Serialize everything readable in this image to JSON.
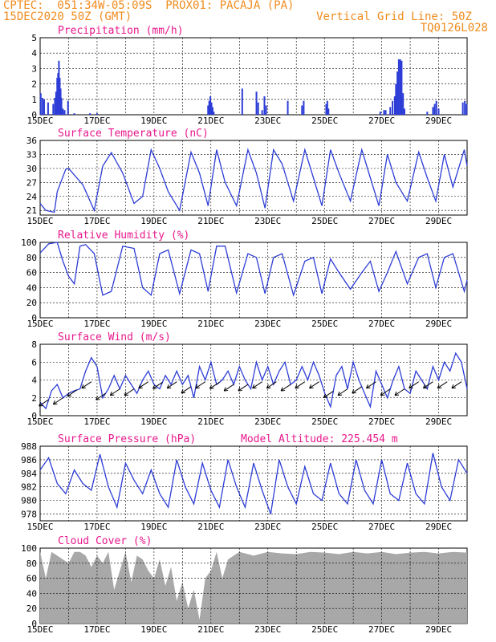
{
  "header": {
    "line1": "CPTEC:  051:34W-05:09S  PROX01: PACAJA (PA)",
    "line2": "15DEC2020 50Z (GMT)",
    "grid_note": "Vertical Grid Line: 50Z",
    "code": "TQ0126L028"
  },
  "colors": {
    "header": "#f08c1e",
    "title": "#e8188c",
    "line": "#2d3dd6",
    "cloud": "#a8a8a8"
  },
  "x_labels": [
    "15DEC",
    "17DEC",
    "19DEC",
    "21DEC",
    "23DEC",
    "25DEC",
    "27DEC",
    "29DEC"
  ],
  "chart_data": [
    {
      "id": "precip",
      "type": "bar",
      "title": "Precipitation (mm/h)",
      "ylim": [
        0,
        5
      ],
      "yticks": [
        0,
        1,
        2,
        3,
        4,
        5
      ],
      "x_range_days": [
        15,
        30
      ],
      "values": [
        [
          15.02,
          1.4
        ],
        [
          15.08,
          1.1
        ],
        [
          15.14,
          1.0
        ],
        [
          15.28,
          0.8
        ],
        [
          15.46,
          0.7
        ],
        [
          15.52,
          1.1
        ],
        [
          15.56,
          1.5
        ],
        [
          15.6,
          2.4
        ],
        [
          15.63,
          2.7
        ],
        [
          15.66,
          3.5
        ],
        [
          15.69,
          2.4
        ],
        [
          15.72,
          1.7
        ],
        [
          15.75,
          1.1
        ],
        [
          15.8,
          0.4
        ],
        [
          15.86,
          0.3
        ],
        [
          15.98,
          0.9
        ],
        [
          16.2,
          0.1
        ],
        [
          16.75,
          0.1
        ],
        [
          17.0,
          0.1
        ],
        [
          20.9,
          0.6
        ],
        [
          20.94,
          0.9
        ],
        [
          20.98,
          1.2
        ],
        [
          21.02,
          0.8
        ],
        [
          21.06,
          0.5
        ],
        [
          21.1,
          0.2
        ],
        [
          22.1,
          1.7
        ],
        [
          22.6,
          1.5
        ],
        [
          22.66,
          0.8
        ],
        [
          22.8,
          0.3
        ],
        [
          22.88,
          1.2
        ],
        [
          22.94,
          0.6
        ],
        [
          23.7,
          0.9
        ],
        [
          24.2,
          0.6
        ],
        [
          24.26,
          0.9
        ],
        [
          25.05,
          0.7
        ],
        [
          25.09,
          0.9
        ],
        [
          25.13,
          0.4
        ],
        [
          26.95,
          0.2
        ],
        [
          27.08,
          0.3
        ],
        [
          27.14,
          0.3
        ],
        [
          27.3,
          0.5
        ],
        [
          27.38,
          0.9
        ],
        [
          27.46,
          1.2
        ],
        [
          27.5,
          2.0
        ],
        [
          27.55,
          2.8
        ],
        [
          27.6,
          3.6
        ],
        [
          27.65,
          3.6
        ],
        [
          27.7,
          3.5
        ],
        [
          27.75,
          1.4
        ],
        [
          27.8,
          0.4
        ],
        [
          28.6,
          0.2
        ],
        [
          28.8,
          0.5
        ],
        [
          28.86,
          0.7
        ],
        [
          28.92,
          0.9
        ],
        [
          29.0,
          0.4
        ],
        [
          29.85,
          0.8
        ],
        [
          29.92,
          0.9
        ],
        [
          29.98,
          0.7
        ]
      ]
    },
    {
      "id": "temp",
      "type": "line",
      "title": "Surface Temperature (nC)",
      "ylim": [
        20,
        36
      ],
      "yticks": [
        21,
        24,
        27,
        30,
        33,
        36
      ],
      "x": [
        15.0,
        15.2,
        15.5,
        15.6,
        15.9,
        16.0,
        16.5,
        16.9,
        17.2,
        17.5,
        17.9,
        18.3,
        18.6,
        18.9,
        19.2,
        19.5,
        19.9,
        20.3,
        20.6,
        20.9,
        21.2,
        21.5,
        21.9,
        22.3,
        22.6,
        22.9,
        23.2,
        23.5,
        23.9,
        24.3,
        24.6,
        24.9,
        25.2,
        25.5,
        25.9,
        26.3,
        26.6,
        26.9,
        27.2,
        27.5,
        27.9,
        28.3,
        28.6,
        28.9,
        29.2,
        29.5,
        29.9,
        30.0
      ],
      "y": [
        22.5,
        21,
        20.6,
        25,
        29.8,
        30,
        26.5,
        21,
        30.5,
        33.4,
        29,
        22.5,
        24,
        34,
        30,
        25,
        21,
        33.5,
        29,
        22,
        34,
        27,
        22,
        34,
        29,
        21.5,
        34,
        31,
        23,
        34,
        28,
        22,
        34,
        29,
        23,
        34,
        28,
        22,
        33,
        27,
        23,
        33.5,
        28,
        23,
        33,
        26,
        34,
        30.5
      ]
    },
    {
      "id": "rh",
      "type": "line",
      "title": "Relative Humidity (%)",
      "ylim": [
        0,
        100
      ],
      "yticks": [
        0,
        20,
        40,
        60,
        80,
        100
      ],
      "x": [
        15.0,
        15.3,
        15.6,
        15.8,
        16.0,
        16.2,
        16.4,
        16.6,
        16.9,
        17.2,
        17.5,
        17.9,
        18.3,
        18.6,
        18.9,
        19.2,
        19.5,
        19.9,
        20.3,
        20.6,
        20.9,
        21.2,
        21.5,
        21.9,
        22.3,
        22.6,
        22.9,
        23.2,
        23.5,
        23.9,
        24.3,
        24.6,
        24.9,
        25.2,
        25.5,
        25.9,
        26.3,
        26.6,
        26.9,
        27.2,
        27.5,
        27.9,
        28.3,
        28.6,
        28.9,
        29.2,
        29.5,
        29.9,
        30.0
      ],
      "y": [
        86,
        98,
        100,
        75,
        55,
        45,
        95,
        97,
        85,
        30,
        35,
        95,
        92,
        40,
        30,
        85,
        90,
        32,
        90,
        85,
        35,
        95,
        95,
        33,
        85,
        80,
        32,
        80,
        85,
        30,
        75,
        80,
        32,
        78,
        60,
        38,
        60,
        75,
        35,
        60,
        88,
        45,
        80,
        85,
        40,
        80,
        85,
        35,
        50
      ]
    },
    {
      "id": "wind",
      "type": "line",
      "title": "Surface Wind (m/s)",
      "ylim": [
        0,
        8
      ],
      "yticks": [
        0,
        2,
        4,
        6,
        8
      ],
      "x": [
        15.0,
        15.2,
        15.4,
        15.6,
        15.8,
        16.0,
        16.2,
        16.4,
        16.6,
        16.8,
        17.0,
        17.2,
        17.4,
        17.6,
        17.8,
        18.0,
        18.2,
        18.4,
        18.6,
        18.8,
        19.0,
        19.2,
        19.4,
        19.6,
        19.8,
        20.0,
        20.2,
        20.4,
        20.6,
        20.8,
        21.0,
        21.2,
        21.4,
        21.6,
        21.8,
        22.0,
        22.2,
        22.4,
        22.6,
        22.8,
        23.0,
        23.2,
        23.4,
        23.6,
        23.8,
        24.0,
        24.2,
        24.4,
        24.6,
        24.8,
        25.0,
        25.2,
        25.4,
        25.6,
        25.8,
        26.0,
        26.2,
        26.4,
        26.6,
        26.8,
        27.0,
        27.2,
        27.4,
        27.6,
        27.8,
        28.0,
        28.2,
        28.4,
        28.6,
        28.8,
        29.0,
        29.2,
        29.4,
        29.6,
        29.8,
        30.0
      ],
      "y": [
        1.5,
        0.8,
        2.8,
        3.5,
        2.0,
        2.5,
        2.8,
        3.0,
        5.0,
        6.5,
        5.5,
        2.0,
        3.0,
        4.5,
        3.0,
        4.5,
        3.5,
        2.5,
        4.0,
        5.0,
        3.5,
        3.0,
        4.5,
        3.5,
        5.0,
        3.5,
        4.5,
        2.0,
        5.5,
        4.0,
        6.0,
        3.5,
        4.0,
        5.0,
        3.5,
        5.5,
        4.0,
        3.0,
        6.0,
        4.0,
        5.5,
        3.5,
        5.0,
        6.0,
        3.5,
        4.0,
        5.5,
        4.0,
        6.0,
        4.5,
        2.5,
        1.0,
        4.5,
        5.5,
        3.0,
        6.0,
        4.0,
        2.5,
        1.0,
        5.0,
        3.5,
        2.0,
        4.0,
        5.5,
        3.0,
        2.5,
        5.0,
        4.0,
        3.0,
        5.5,
        4.0,
        6.0,
        5.0,
        7.0,
        6.0,
        3.0
      ]
    },
    {
      "id": "pressure",
      "type": "line",
      "title": "Surface Pressure (hPa)",
      "annotation": "Model Altitude: 225.454 m",
      "ylim": [
        977,
        988
      ],
      "yticks": [
        978,
        980,
        982,
        984,
        986,
        988
      ],
      "x": [
        15.0,
        15.3,
        15.6,
        15.9,
        16.2,
        16.5,
        16.8,
        17.1,
        17.4,
        17.7,
        18.0,
        18.3,
        18.6,
        18.9,
        19.2,
        19.5,
        19.8,
        20.1,
        20.4,
        20.7,
        21.0,
        21.3,
        21.6,
        21.9,
        22.2,
        22.5,
        22.8,
        23.1,
        23.4,
        23.7,
        24.0,
        24.3,
        24.6,
        24.9,
        25.2,
        25.5,
        25.8,
        26.1,
        26.4,
        26.7,
        27.0,
        27.3,
        27.6,
        27.9,
        28.2,
        28.5,
        28.8,
        29.1,
        29.4,
        29.7,
        30.0
      ],
      "y": [
        984.5,
        986.3,
        982.5,
        981,
        984.5,
        982.5,
        981.5,
        986.8,
        982,
        979,
        985.5,
        983,
        981,
        984.5,
        981,
        979,
        986,
        982,
        979.5,
        985.5,
        981.5,
        979,
        986,
        982,
        979,
        985.5,
        981.5,
        978,
        986,
        982,
        979.5,
        985,
        981,
        980,
        985.5,
        981,
        979.5,
        986,
        981.5,
        979.5,
        986,
        981,
        980,
        985.5,
        981,
        979.5,
        987,
        982,
        980,
        986,
        984
      ]
    },
    {
      "id": "cloud",
      "type": "area",
      "title": "Cloud Cover (%)",
      "ylim": [
        0,
        100
      ],
      "yticks": [
        0,
        20,
        40,
        60,
        80,
        100
      ],
      "x": [
        15.0,
        15.2,
        15.4,
        15.6,
        15.8,
        16.0,
        16.2,
        16.4,
        16.6,
        16.8,
        17.0,
        17.2,
        17.4,
        17.6,
        17.8,
        18.0,
        18.2,
        18.4,
        18.6,
        18.8,
        19.0,
        19.2,
        19.4,
        19.6,
        19.8,
        20.0,
        20.2,
        20.4,
        20.6,
        20.8,
        21.0,
        21.2,
        21.4,
        21.6,
        21.8,
        22.0,
        22.5,
        23.0,
        23.5,
        24.0,
        24.5,
        25.0,
        25.5,
        26.0,
        26.5,
        27.0,
        27.5,
        28.0,
        28.5,
        29.0,
        29.5,
        30.0
      ],
      "y": [
        95,
        60,
        95,
        90,
        85,
        80,
        95,
        95,
        90,
        75,
        90,
        80,
        95,
        45,
        70,
        95,
        55,
        90,
        85,
        70,
        60,
        85,
        50,
        75,
        30,
        55,
        20,
        45,
        5,
        60,
        70,
        95,
        60,
        85,
        90,
        95,
        90,
        95,
        93,
        92,
        95,
        94,
        92,
        95,
        93,
        95,
        92,
        94,
        95,
        93,
        95,
        94
      ]
    }
  ]
}
